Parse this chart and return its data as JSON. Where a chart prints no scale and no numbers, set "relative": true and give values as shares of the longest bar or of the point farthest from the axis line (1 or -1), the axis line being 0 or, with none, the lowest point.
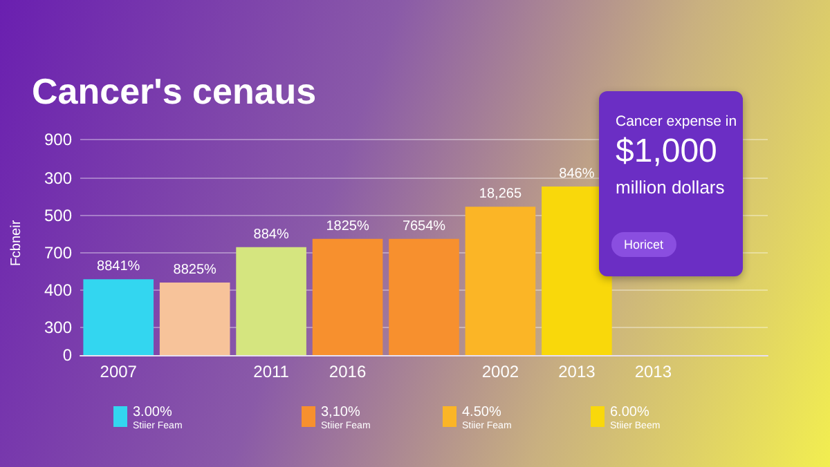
{
  "chart_data": {
    "type": "bar",
    "title": "Cancer's cenaus",
    "ylabel": "Fcbneir",
    "relative": true,
    "categories": [
      "2007",
      null,
      "2011",
      "2016",
      null,
      "2002",
      "2013",
      "2013",
      null
    ],
    "values": [
      0.45,
      0.43,
      0.64,
      0.69,
      0.69,
      0.88,
      1,
      null,
      null
    ],
    "colors": [
      "#33d6f0",
      "#f7c39a",
      "#d5e57f",
      "#f7902e",
      "#f7902e",
      "#fbb526",
      "#f9d80b",
      "#f79a1e",
      "#f77414"
    ],
    "grid": "y",
    "annotations": [
      "Cancer expense in",
      "$1,000",
      "million dollars",
      "Horicet",
      "3.00%",
      "Stiier Feam",
      "3,10%",
      "Stiier Feam",
      "4.50%",
      "Stiier Feam",
      "6.00%",
      "Stiier Beem",
      "900",
      "300",
      "500",
      "700",
      "400",
      "300",
      "0",
      "8841%",
      "8825%",
      "884%",
      "1825%",
      "7654%",
      "18,265",
      "846%"
    ]
  }
}
